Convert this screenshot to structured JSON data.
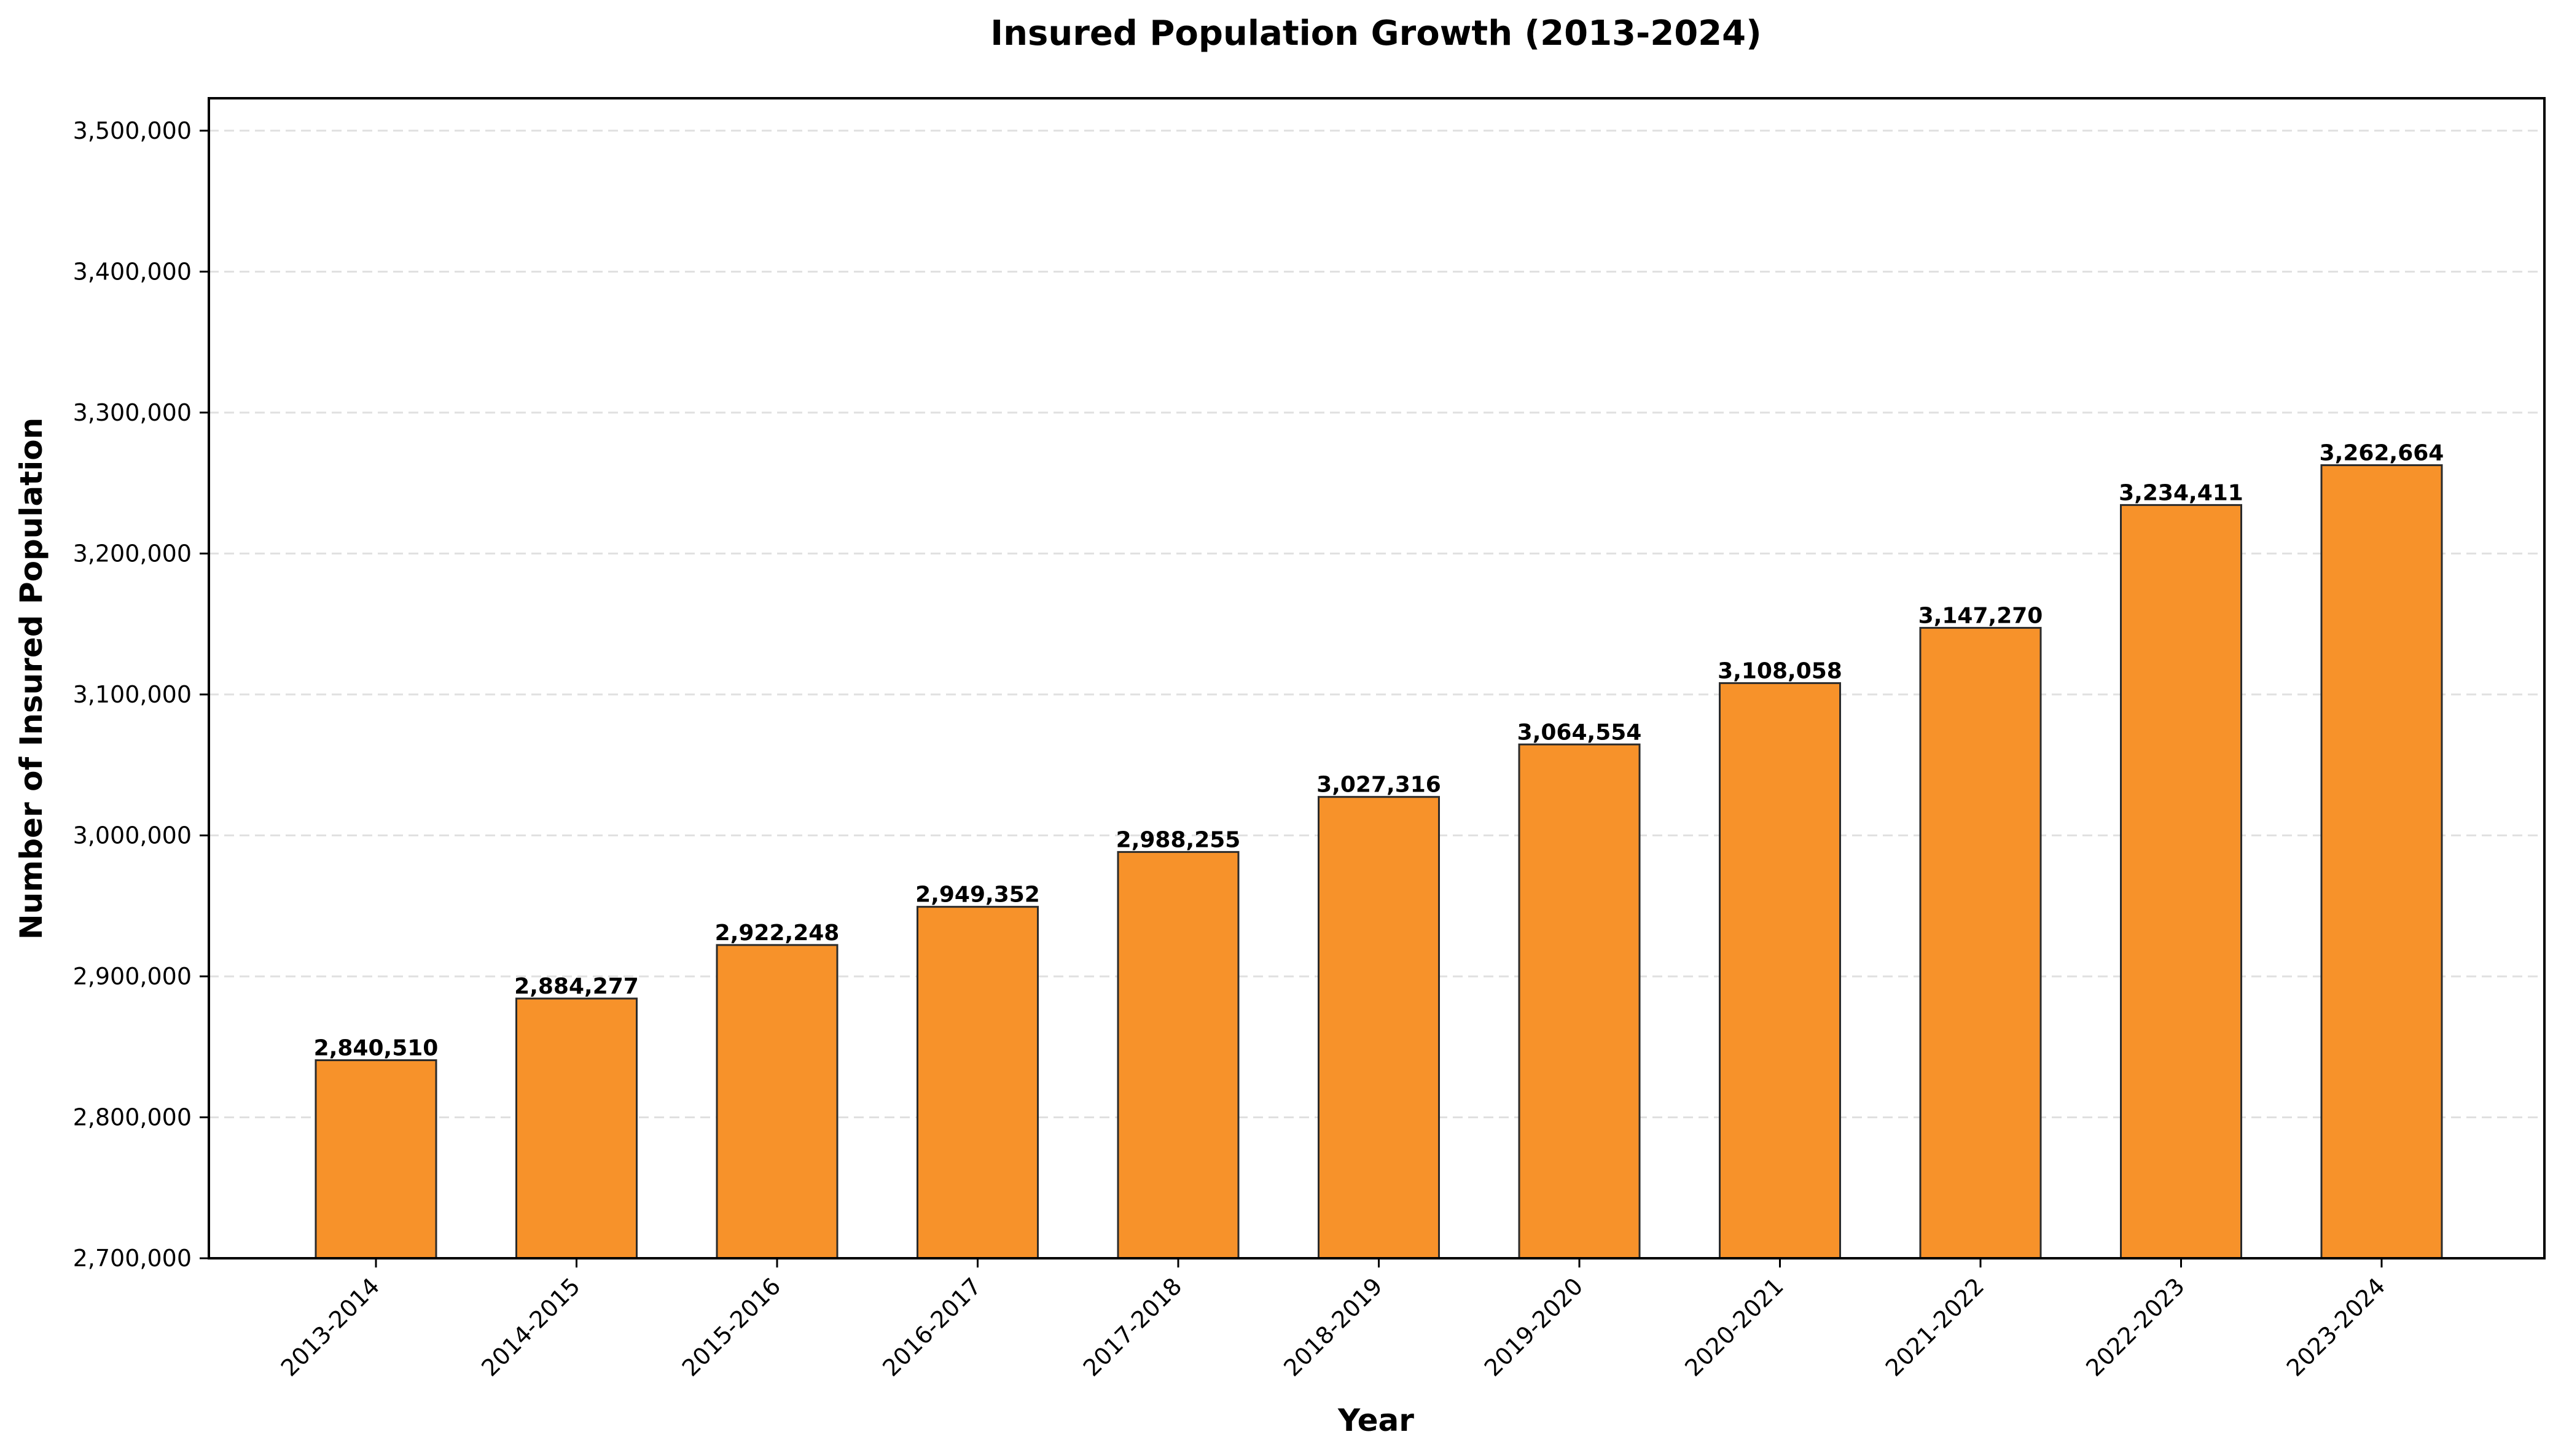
{
  "chart_data": {
    "type": "bar",
    "title": "Insured Population Growth (2013-2024)",
    "xlabel": "Year",
    "ylabel": "Number of Insured Population",
    "categories": [
      "2013-2014",
      "2014-2015",
      "2015-2016",
      "2016-2017",
      "2017-2018",
      "2018-2019",
      "2019-2020",
      "2020-2021",
      "2021-2022",
      "2022-2023",
      "2023-2024"
    ],
    "values": [
      2840510,
      2884277,
      2922248,
      2949352,
      2988255,
      3027316,
      3064554,
      3108058,
      3147270,
      3234411,
      3262664
    ],
    "value_labels": [
      "2,840,510",
      "2,884,277",
      "2,922,248",
      "2,949,352",
      "2,988,255",
      "3,027,316",
      "3,064,554",
      "3,108,058",
      "3,147,270",
      "3,234,411",
      "3,262,664"
    ],
    "ylim": [
      2700000,
      3523000
    ],
    "yticks": [
      2700000,
      2800000,
      2900000,
      3000000,
      3100000,
      3200000,
      3300000,
      3400000,
      3500000
    ],
    "ytick_labels": [
      "2,700,000",
      "2,800,000",
      "2,900,000",
      "3,000,000",
      "3,100,000",
      "3,200,000",
      "3,300,000",
      "3,400,000",
      "3,500,000"
    ],
    "grid": "y, dashed",
    "legend": "none",
    "colors": {
      "bar_fill": "#F7922A",
      "bar_edge": "#2b2b2b",
      "grid": "#e0e0e0"
    }
  }
}
